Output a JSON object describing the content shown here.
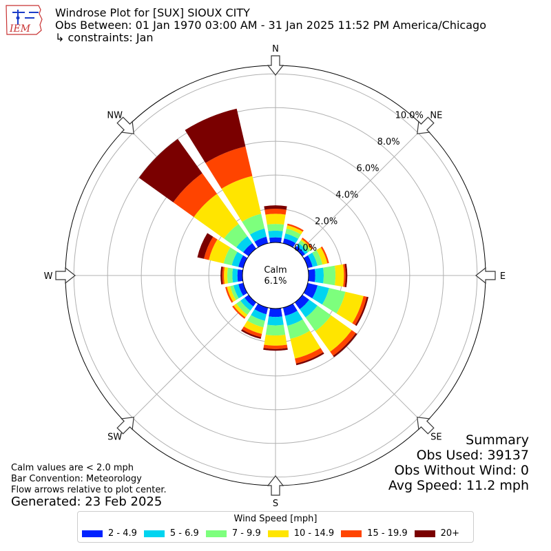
{
  "header": {
    "title": "Windrose Plot for [SUX] SIOUX CITY",
    "obs_between": "Obs Between: 01 Jan 1970 03:00 AM - 31 Jan 2025 11:52 PM America/Chicago",
    "constraints": "↳ constraints: Jan"
  },
  "logo": {
    "text": "IEM"
  },
  "footer": {
    "notes": [
      "Calm values are < 2.0 mph",
      "Bar Convention: Meteorology",
      "Flow arrows relative to plot center."
    ],
    "generated": "Generated: 23 Feb 2025"
  },
  "summary": {
    "title": "Summary",
    "obs_used": "Obs Used: 39137",
    "obs_without_wind": "Obs Without Wind: 0",
    "avg_speed": "Avg Speed: 11.2 mph"
  },
  "legend": {
    "title": "Wind Speed [mph]",
    "items": [
      "2 - 4.9",
      "5 - 6.9",
      "7 - 9.9",
      "10 - 14.9",
      "15 - 19.9",
      "20+"
    ]
  },
  "chart_data": {
    "type": "windrose",
    "calm": {
      "label": "Calm",
      "value_label": "6.1%",
      "value": 6.1
    },
    "directions": [
      "N",
      "NNE",
      "NE",
      "ENE",
      "E",
      "ESE",
      "SE",
      "SSE",
      "S",
      "SSW",
      "SW",
      "WSW",
      "W",
      "WNW",
      "NW",
      "NNW"
    ],
    "compass_labels": [
      "N",
      "NE",
      "E",
      "SE",
      "S",
      "SW",
      "W",
      "NW"
    ],
    "radial_ticks": [
      "0.0%",
      "2.0%",
      "4.0%",
      "6.0%",
      "8.0%",
      "10.0%"
    ],
    "radial_tick_values": [
      0,
      2,
      4,
      6,
      8,
      10
    ],
    "rmax": 10.5,
    "speed_bins": [
      "2 - 4.9",
      "5 - 6.9",
      "7 - 9.9",
      "10 - 14.9",
      "15 - 19.9",
      "20+"
    ],
    "colors": [
      "#0022ff",
      "#00d4f0",
      "#7dff7d",
      "#ffe500",
      "#ff4400",
      "#7a0000"
    ],
    "series": [
      {
        "name": "2 - 4.9",
        "values": [
          0.3,
          0.3,
          0.2,
          0.3,
          0.4,
          0.6,
          0.5,
          0.5,
          0.5,
          0.4,
          0.3,
          0.3,
          0.3,
          0.3,
          0.4,
          0.4
        ]
      },
      {
        "name": "5 - 6.9",
        "values": [
          0.4,
          0.3,
          0.2,
          0.3,
          0.5,
          0.7,
          0.6,
          0.6,
          0.5,
          0.4,
          0.3,
          0.3,
          0.3,
          0.4,
          0.5,
          0.5
        ]
      },
      {
        "name": "7 - 9.9",
        "values": [
          0.4,
          0.3,
          0.2,
          0.3,
          0.7,
          1.0,
          1.0,
          0.8,
          0.6,
          0.4,
          0.3,
          0.2,
          0.3,
          0.5,
          0.9,
          0.9
        ]
      },
      {
        "name": "10 - 14.9",
        "values": [
          0.6,
          0.2,
          0.1,
          0.3,
          0.5,
          1.1,
          1.5,
          1.2,
          0.6,
          0.4,
          0.2,
          0.2,
          0.2,
          0.9,
          2.2,
          2.3
        ]
      },
      {
        "name": "15 - 19.9",
        "values": [
          0.3,
          0.1,
          0.1,
          0.1,
          0.1,
          0.2,
          0.3,
          0.3,
          0.2,
          0.2,
          0.1,
          0.1,
          0.1,
          0.3,
          1.5,
          1.8
        ]
      },
      {
        "name": "20+",
        "values": [
          0.2,
          0.0,
          0.0,
          0.0,
          0.1,
          0.1,
          0.1,
          0.1,
          0.1,
          0.1,
          0.0,
          0.0,
          0.1,
          0.4,
          2.5,
          2.3
        ]
      }
    ],
    "grid": true
  }
}
